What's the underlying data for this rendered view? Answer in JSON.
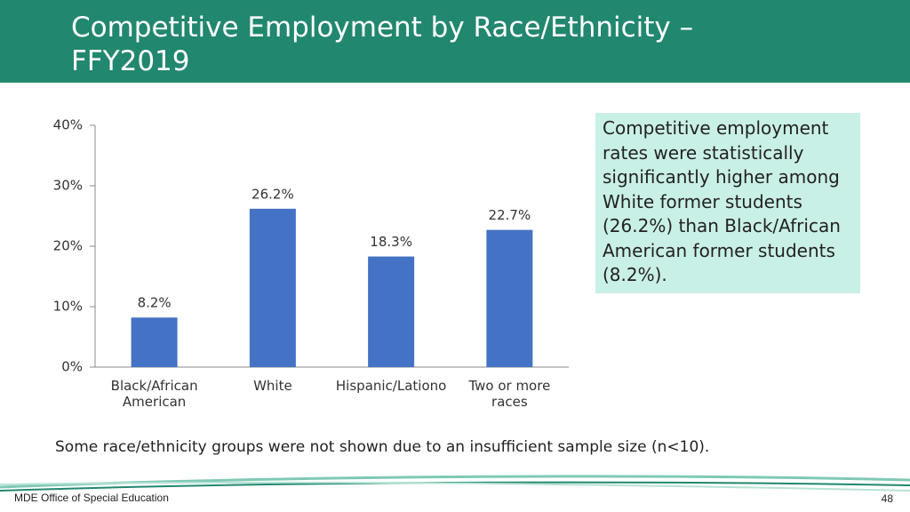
{
  "slide": {
    "title": "Competitive Employment by Race/Ethnicity – FFY2019",
    "callout": "Competitive employment rates were statistically significantly higher among White former students (26.2%) than Black/African American former students (8.2%).",
    "footnote": "Some race/ethnicity groups were not shown due to an insufficient sample size (n<10).",
    "footer": "MDE Office of Special Education",
    "page_number": "48"
  },
  "chart_data": {
    "type": "bar",
    "categories": [
      "Black/African American",
      "White",
      "Hispanic/Lationo",
      "Two or more races"
    ],
    "values": [
      8.2,
      26.2,
      18.3,
      22.7
    ],
    "value_labels": [
      "8.2%",
      "26.2%",
      "18.3%",
      "22.7%"
    ],
    "color": "#4472c4",
    "ylim": [
      0,
      40
    ],
    "yticks": [
      {
        "value": 0,
        "label": "0%"
      },
      {
        "value": 10,
        "label": "10%"
      },
      {
        "value": 20,
        "label": "20%"
      },
      {
        "value": 30,
        "label": "30%"
      },
      {
        "value": 40,
        "label": "40%"
      }
    ],
    "grid": false
  }
}
